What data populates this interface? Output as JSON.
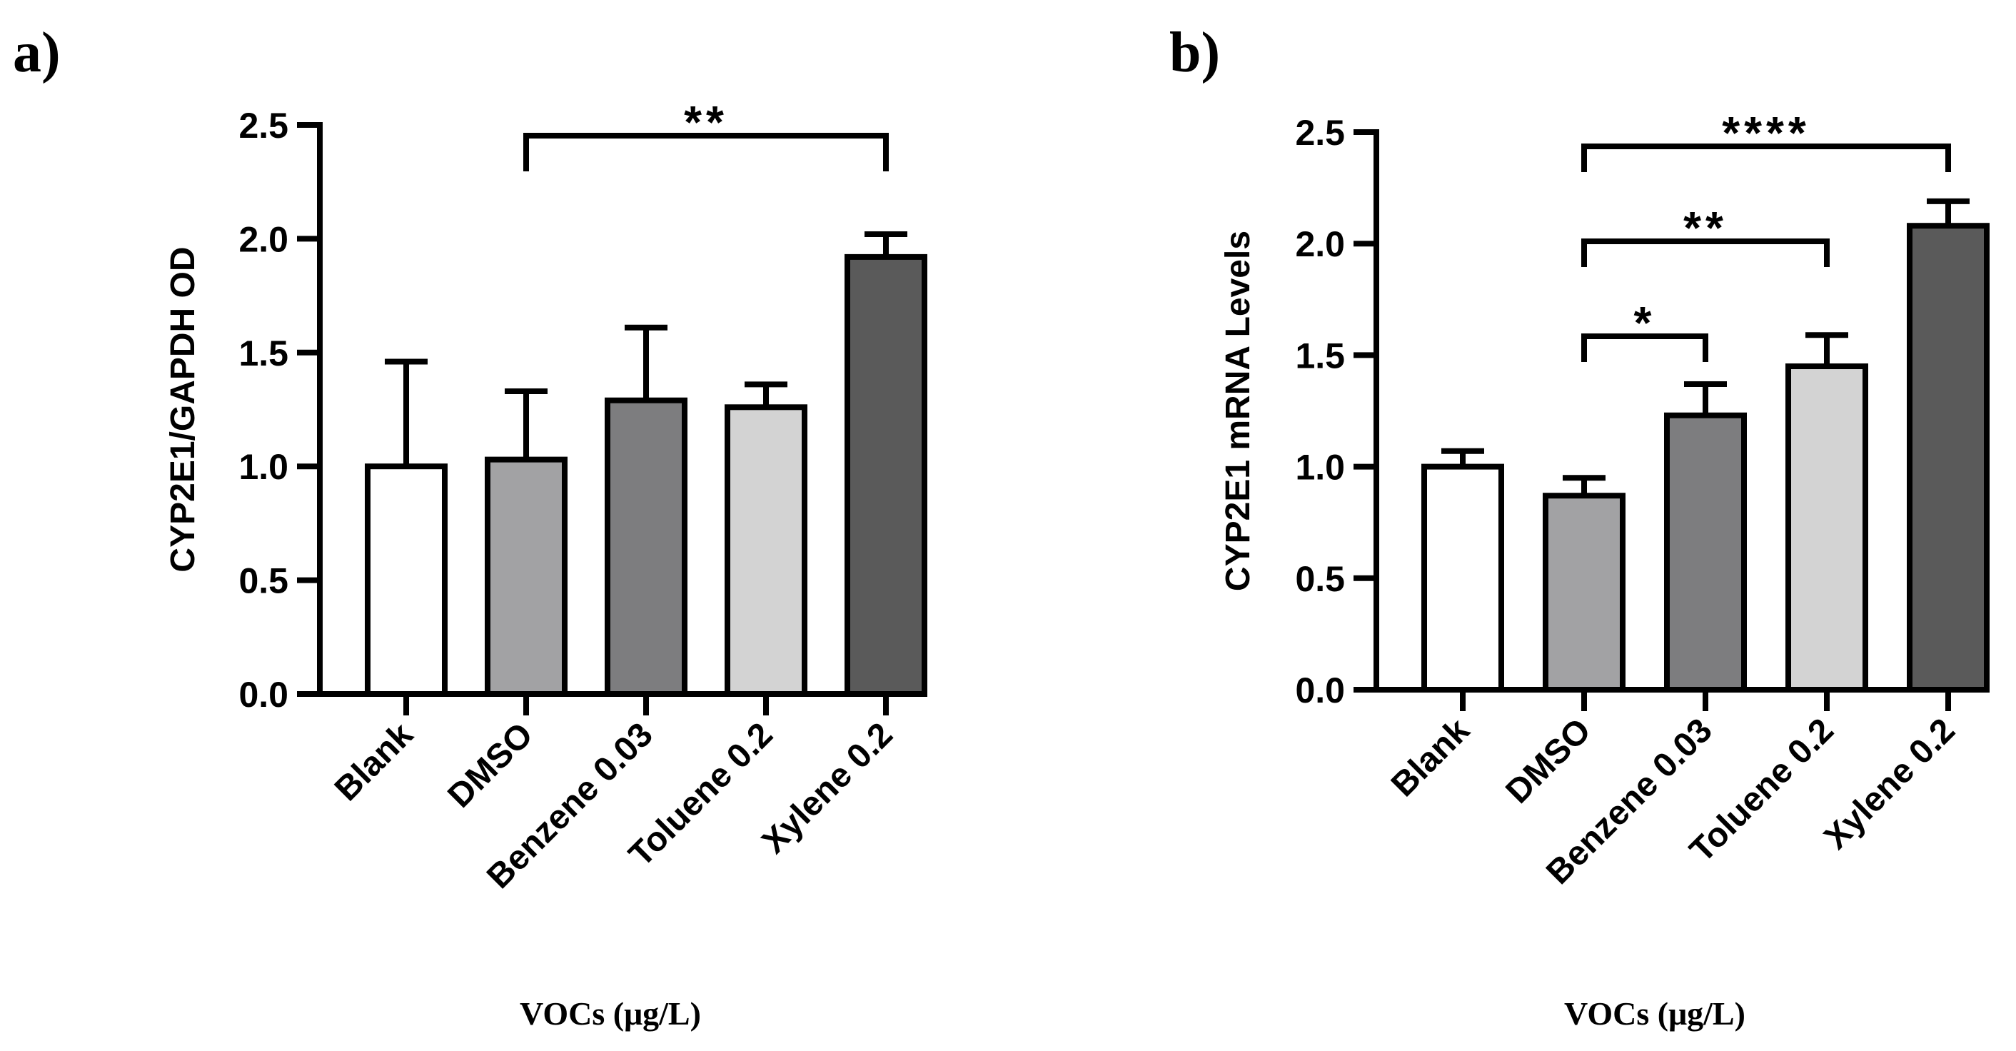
{
  "chart_data": [
    {
      "panel_label": "a)",
      "type": "bar",
      "categories": [
        "Blank",
        "DMSO",
        "Benzene 0.03",
        "Toluene 0.2",
        "Xylene 0.2"
      ],
      "series": [
        {
          "name": "CYP2E1/GAPDH OD",
          "values": [
            1.0,
            1.03,
            1.29,
            1.26,
            1.92
          ],
          "errors": [
            0.46,
            0.3,
            0.32,
            0.1,
            0.1
          ]
        }
      ],
      "bar_colors": [
        "#ffffff",
        "#a2a2a4",
        "#7d7d7f",
        "#d3d3d3",
        "#5a5a5a"
      ],
      "ylabel": "CYP2E1/GAPDH OD",
      "xlabel": "VOCs (μg/L)",
      "ylim": [
        0,
        2.5
      ],
      "yticks": [
        "0.0",
        "0.5",
        "1.0",
        "1.5",
        "2.0",
        "2.5"
      ],
      "annotations": [
        {
          "from": "DMSO",
          "to": "Xylene 0.2",
          "text": "**"
        }
      ]
    },
    {
      "panel_label": "b)",
      "type": "bar",
      "categories": [
        "Blank",
        "DMSO",
        "Benzene 0.03",
        "Toluene 0.2",
        "Xylene 0.2"
      ],
      "series": [
        {
          "name": "CYP2E1 mRNA Levels",
          "values": [
            1.0,
            0.87,
            1.23,
            1.45,
            2.08
          ],
          "errors": [
            0.07,
            0.08,
            0.14,
            0.14,
            0.11
          ]
        }
      ],
      "bar_colors": [
        "#ffffff",
        "#a2a2a4",
        "#7d7d7f",
        "#d3d3d3",
        "#5a5a5a"
      ],
      "ylabel": "CYP2E1 mRNA Levels",
      "xlabel": "VOCs (μg/L)",
      "ylim": [
        0,
        2.5
      ],
      "yticks": [
        "0.0",
        "0.5",
        "1.0",
        "1.5",
        "2.0",
        "2.5"
      ],
      "annotations": [
        {
          "from": "DMSO",
          "to": "Xylene 0.2",
          "text": "****"
        },
        {
          "from": "DMSO",
          "to": "Toluene 0.2",
          "text": "**"
        },
        {
          "from": "DMSO",
          "to": "Benzene 0.03",
          "text": "*"
        }
      ]
    }
  ]
}
